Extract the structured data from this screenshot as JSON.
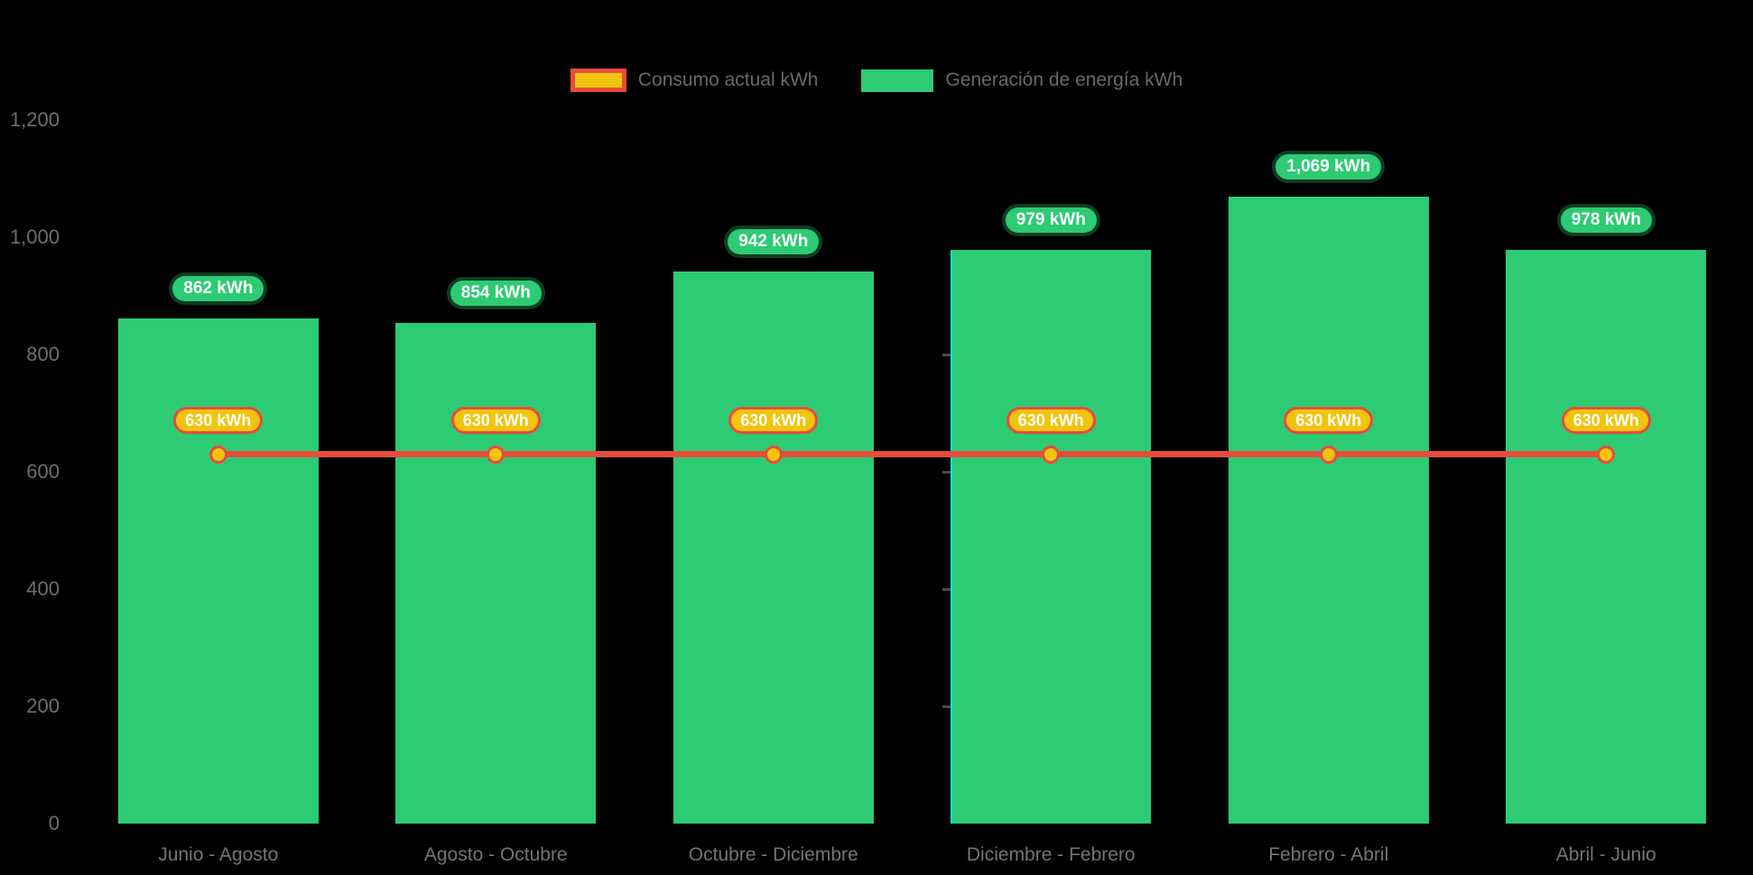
{
  "background_color": "#000000",
  "legend": {
    "items": [
      {
        "label": "Consumo actual kWh",
        "swatch_fill": "#F1C40F",
        "swatch_border": "#E74C3C"
      },
      {
        "label": "Generación de energía kWh",
        "swatch_fill": "#2DCB73"
      }
    ]
  },
  "chart_data": {
    "type": "bar",
    "title": "",
    "categories": [
      "Junio - Agosto",
      "Agosto - Octubre",
      "Octubre - Diciembre",
      "Diciembre - Febrero",
      "Febrero - Abril",
      "Abril - Junio"
    ],
    "series": [
      {
        "name": "Generación de energía kWh",
        "type": "bar",
        "color": "#2DCB73",
        "values": [
          862,
          854,
          942,
          979,
          1069,
          978
        ],
        "labels": [
          "862 kWh",
          "854 kWh",
          "942 kWh",
          "979 kWh",
          "1,069 kWh",
          "978 kWh"
        ]
      },
      {
        "name": "Consumo actual kWh",
        "type": "line",
        "color": "#E74C3C",
        "marker_fill": "#F1C40F",
        "marker_border": "#E74C3C",
        "values": [
          630,
          630,
          630,
          630,
          630,
          630
        ],
        "labels": [
          "630 kWh",
          "630 kWh",
          "630 kWh",
          "630 kWh",
          "630 kWh",
          "630 kWh"
        ]
      }
    ],
    "xlabel": "",
    "ylabel": "",
    "ylim": [
      0,
      1200
    ],
    "y_ticks": [
      {
        "value": 0,
        "label": "0"
      },
      {
        "value": 200,
        "label": "200"
      },
      {
        "value": 400,
        "label": "400"
      },
      {
        "value": 600,
        "label": "600"
      },
      {
        "value": 800,
        "label": "800"
      },
      {
        "value": 1000,
        "label": "1,000"
      },
      {
        "value": 1200,
        "label": "1,200"
      }
    ],
    "grid": false,
    "legend_position": "top"
  },
  "artifact": {
    "color": "#00E5FF",
    "tick_color": "#4A4A4A",
    "tick_levels": [
      800,
      600,
      400,
      200
    ],
    "attached_category_index": 3
  }
}
